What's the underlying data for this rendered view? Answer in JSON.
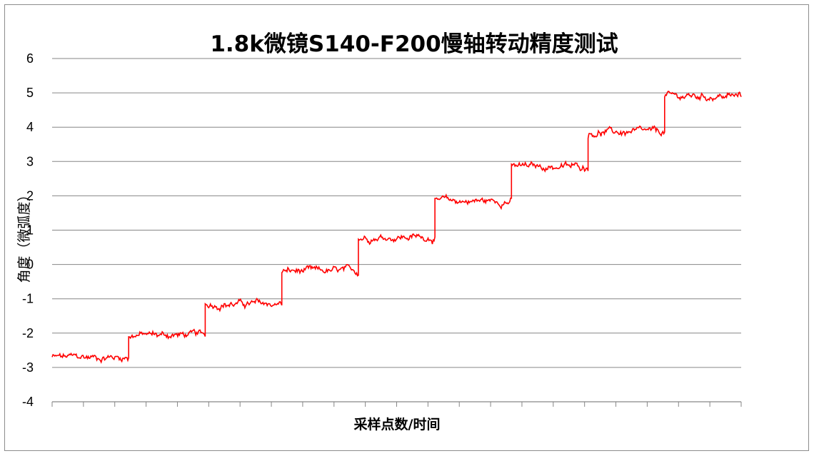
{
  "chart_data": {
    "type": "line",
    "title": "1.8k微镜S140-F200慢轴转动精度测试",
    "xlabel": "采样点数/时间",
    "ylabel": "角度（微弧度）",
    "ylim": [
      -4,
      6
    ],
    "y_ticks": [
      "6",
      "5",
      "4",
      "3",
      "2",
      "1",
      "0",
      "-1",
      "-2",
      "-3",
      "-4"
    ],
    "grid": true,
    "legend": "none",
    "x_tick_count": 22,
    "series": [
      {
        "color": "#ff0000",
        "steps": [
          {
            "segment": 1,
            "mean": -2.7
          },
          {
            "segment": 2,
            "mean": -2.05
          },
          {
            "segment": 3,
            "mean": -1.15
          },
          {
            "segment": 4,
            "mean": -0.2
          },
          {
            "segment": 5,
            "mean": 0.8
          },
          {
            "segment": 6,
            "mean": 1.85
          },
          {
            "segment": 7,
            "mean": 2.85
          },
          {
            "segment": 8,
            "mean": 3.85
          },
          {
            "segment": 9,
            "mean": 4.9
          }
        ],
        "noise_amplitude": 0.08
      }
    ]
  }
}
